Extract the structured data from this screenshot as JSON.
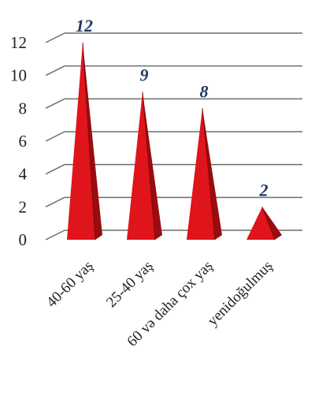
{
  "chart_data": {
    "type": "bar",
    "bar_shape": "pyramid",
    "categories": [
      "40-60 yaş",
      "25-40 yaş",
      "60 və daha çox yaş",
      "yenidoğulmuş"
    ],
    "values": [
      12,
      9,
      8,
      2
    ],
    "data_labels": [
      "12",
      "9",
      "8",
      "2"
    ],
    "title": "",
    "xlabel": "",
    "ylabel": "",
    "ylim": [
      0,
      12
    ],
    "yticks": [
      0,
      2,
      4,
      6,
      8,
      10,
      12
    ],
    "grid": true,
    "legend": "none",
    "colors": {
      "bar_front": "#e0141b",
      "bar_side": "#9a0c10",
      "bar_shadow": "#7a0a0d",
      "data_label": "#1f3864",
      "grid": "#6e6e6e"
    }
  }
}
